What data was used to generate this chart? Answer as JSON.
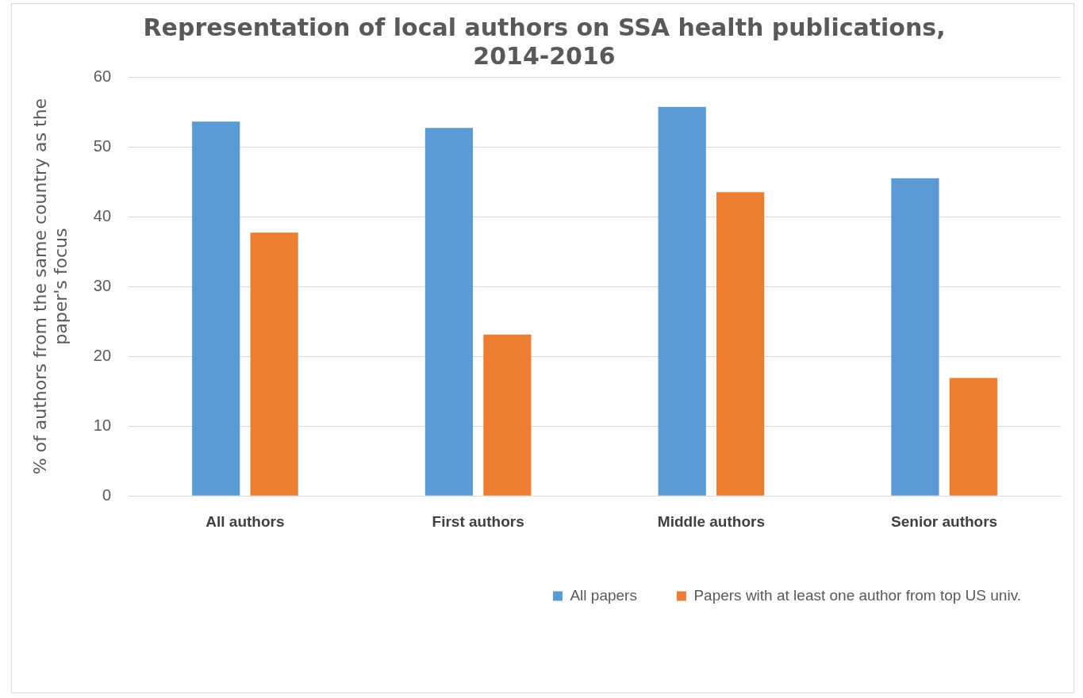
{
  "chart_data": {
    "type": "bar",
    "title": "Representation of local authors on SSA health publications, 2014-2016",
    "ylabel": "% of authors from the same country as the paper's focus",
    "categories": [
      "All authors",
      "First authors",
      "Middle authors",
      "Senior authors"
    ],
    "series": [
      {
        "name": "All papers",
        "color": "#5b9bd5",
        "values": [
          53.6,
          52.7,
          55.7,
          45.5
        ]
      },
      {
        "name": "Papers with at least one author from top US univ.",
        "color": "#ed7d31",
        "values": [
          37.7,
          23.1,
          43.5,
          16.9
        ]
      }
    ],
    "ylim": [
      0,
      60
    ],
    "yticks": [
      0,
      10,
      20,
      30,
      40,
      50,
      60
    ],
    "grid": "y",
    "legend": "bottom right"
  }
}
